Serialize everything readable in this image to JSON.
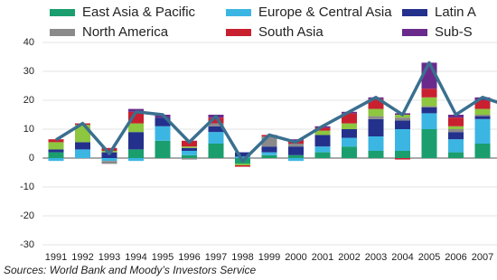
{
  "chart_data": {
    "type": "bar",
    "stacked": true,
    "source": "Sources: World Bank and Moody’s Investors Service",
    "categories": [
      "1991",
      "1992",
      "1993",
      "1994",
      "1995",
      "1996",
      "1997",
      "1998",
      "1999",
      "2000",
      "2001",
      "2002",
      "2003",
      "2004",
      "2005",
      "2006",
      "2007",
      null
    ],
    "series": [
      {
        "name": "East Asia & Pacific",
        "color": "#1a9e6e",
        "values": [
          2,
          0,
          0,
          3,
          6,
          1,
          5,
          -2,
          1,
          1,
          2,
          4,
          2.5,
          2.5,
          10,
          2,
          5,
          5
        ]
      },
      {
        "name": "Europe & Central Asia",
        "color": "#3bb6e3",
        "values": [
          -1,
          3,
          -1,
          -1,
          5,
          1.5,
          4,
          0.5,
          1,
          -1,
          2,
          3,
          5,
          7.5,
          5.5,
          4.5,
          8.5,
          7
        ]
      },
      {
        "name": "Latin A",
        "color": "#23318c",
        "values": [
          1,
          2.5,
          2,
          6,
          3,
          1,
          2,
          1.5,
          2,
          3,
          4,
          3,
          6,
          3,
          2,
          2.5,
          1,
          2
        ]
      },
      {
        "name": "North America",
        "color": "#8a8a8a",
        "values": [
          0,
          0,
          -1,
          0,
          0,
          -0.5,
          1,
          0,
          3.5,
          1,
          0,
          0,
          1,
          1,
          0.5,
          1,
          0.5,
          0
        ]
      },
      {
        "color": "#8dc63f",
        "values": [
          2.5,
          6,
          0.5,
          3,
          0,
          0.5,
          0,
          -0.5,
          0,
          0,
          1.5,
          2,
          2.5,
          1,
          3,
          1,
          2,
          1
        ]
      },
      {
        "name": "South Asia",
        "color": "#c8202f",
        "values": [
          1,
          0.5,
          1,
          4,
          0,
          2,
          2,
          -0.5,
          0.5,
          1,
          1,
          3.5,
          3.5,
          -0.5,
          3,
          3,
          3,
          2
        ]
      },
      {
        "name": "Sub-S",
        "color": "#6a2a8c",
        "values": [
          0,
          0,
          0,
          1,
          1,
          0,
          1,
          0,
          0,
          0.5,
          0.5,
          0.5,
          0.5,
          0.5,
          9,
          1,
          1,
          1
        ]
      }
    ],
    "line": {
      "color": "#3a6f8f",
      "values": [
        6.3,
        12,
        1.5,
        16,
        15,
        5.5,
        14.5,
        -1,
        8,
        5.5,
        11,
        16,
        21,
        15,
        33,
        15,
        21,
        18
      ]
    },
    "ylim": [
      -30,
      40
    ],
    "yticks": [
      -30,
      -20,
      -10,
      0,
      10,
      20,
      30,
      40
    ],
    "grid": true
  }
}
